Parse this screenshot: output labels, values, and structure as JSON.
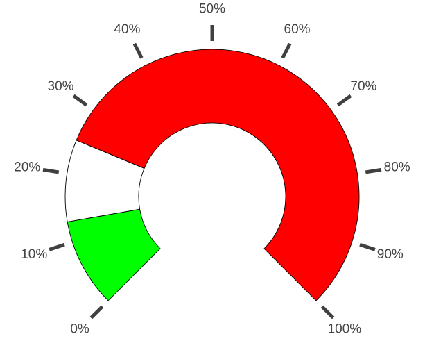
{
  "chart_data": {
    "type": "gauge",
    "range": [
      0,
      100
    ],
    "unit": "%",
    "bands": [
      {
        "from": 0,
        "to": 13,
        "color": "#00ff00"
      },
      {
        "from": 13,
        "to": 25,
        "color": "#ffffff"
      },
      {
        "from": 25,
        "to": 100,
        "color": "#ff0000"
      }
    ],
    "ticks": [
      0,
      10,
      20,
      30,
      40,
      50,
      60,
      70,
      80,
      90,
      100
    ],
    "tick_labels": [
      "0%",
      "10%",
      "20%",
      "30%",
      "40%",
      "50%",
      "60%",
      "70%",
      "80%",
      "90%",
      "100%"
    ]
  }
}
